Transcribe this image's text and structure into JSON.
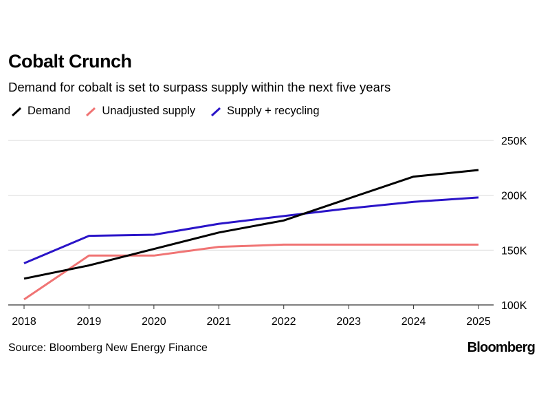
{
  "chart_data": {
    "type": "line",
    "title": "Cobalt Crunch",
    "subtitle": "Demand for cobalt is set to surpass supply within the next five years",
    "categories": [
      "2018",
      "2019",
      "2020",
      "2021",
      "2022",
      "2023",
      "2024",
      "2025"
    ],
    "y_ticks": [
      {
        "value": 100000,
        "label": "100K"
      },
      {
        "value": 150000,
        "label": "150K"
      },
      {
        "value": 200000,
        "label": "200K"
      },
      {
        "value": 250000,
        "label": "250K"
      }
    ],
    "ylim": [
      100000,
      250000
    ],
    "grid": true,
    "series": [
      {
        "name": "Demand",
        "color": "#000000",
        "values": [
          124000,
          136000,
          151000,
          166000,
          177000,
          197000,
          217000,
          223000
        ]
      },
      {
        "name": "Unadjusted supply",
        "color": "#f07474",
        "values": [
          105000,
          145000,
          145000,
          153000,
          155000,
          155000,
          155000,
          155000
        ]
      },
      {
        "name": "Supply + recycling",
        "color": "#2a14c8",
        "values": [
          138000,
          163000,
          164000,
          174000,
          181000,
          188000,
          194000,
          198000
        ]
      }
    ]
  },
  "source": "Source: Bloomberg New Energy Finance",
  "brand": "Bloomberg"
}
